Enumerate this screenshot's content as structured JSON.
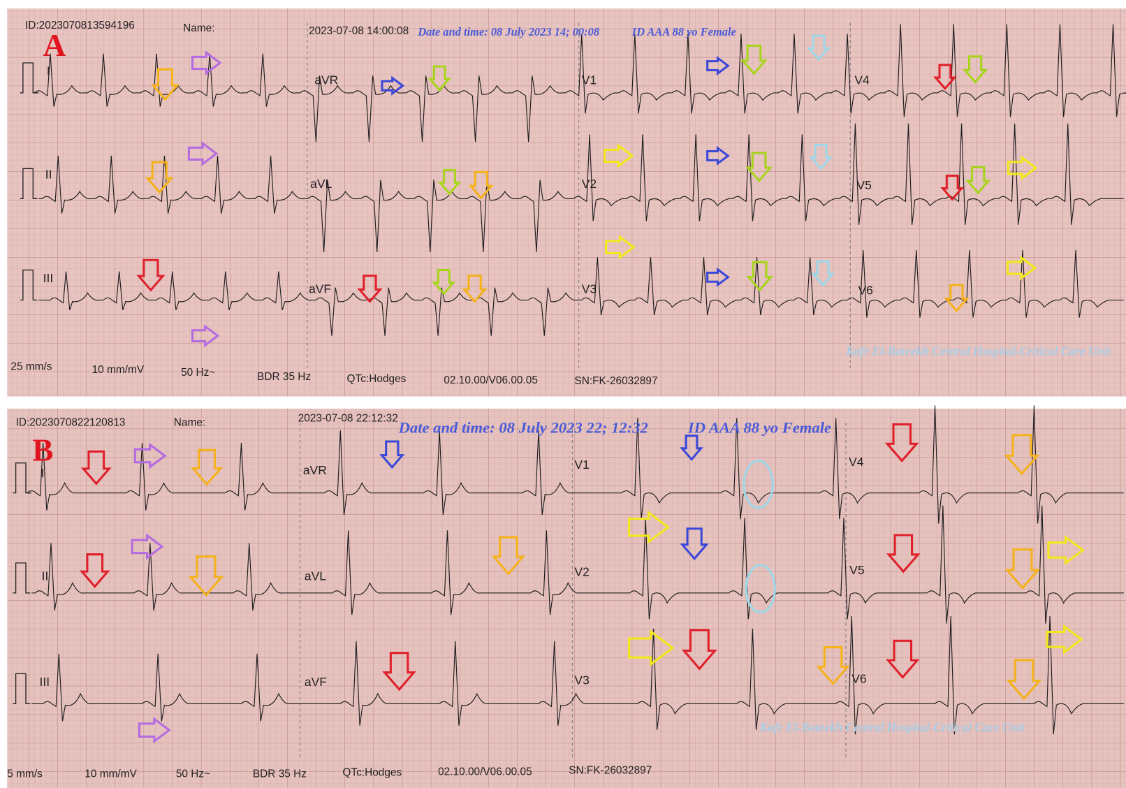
{
  "panels": [
    {
      "label": "A",
      "header": {
        "id": "ID:2023070813594196",
        "name": "Name:",
        "timestamp": "2023-07-08 14:00:08",
        "annotation_date": "Date and time: 08 July 2023 14; 00:08",
        "annotation_patient": "ID AAA 88 yo Female"
      },
      "leads": [
        "I",
        "II",
        "III",
        "aVR",
        "aVL",
        "aVF",
        "V1",
        "V2",
        "V3",
        "V4",
        "V5",
        "V6"
      ],
      "footer": [
        "25 mm/s",
        "10 mm/mV",
        "50 Hz~",
        "BDR 35 Hz",
        "QTc:Hodges",
        "02.10.00/V06.00.05",
        "SN:FK-26032897"
      ],
      "watermark": "Kafr El-Bateekh Central Hospital-Critical Care Unit"
    },
    {
      "label": "B",
      "header": {
        "id": "ID:2023070822120813",
        "name": "Name:",
        "timestamp": "2023-07-08 22:12:32",
        "annotation_date": "Date and time: 08 July 2023 22; 12:32",
        "annotation_patient": "ID AAA 88 yo Female"
      },
      "leads": [
        "I",
        "II",
        "III",
        "aVR",
        "aVL",
        "aVF",
        "V1",
        "V2",
        "V3",
        "V4",
        "V5",
        "V6"
      ],
      "footer": [
        "5 mm/s",
        "10 mm/mV",
        "50 Hz~",
        "BDR 35 Hz",
        "QTc:Hodges",
        "02.10.00/V06.00.05",
        "SN:FK-26032897"
      ],
      "watermark": "Kafr El-Bateekh Central Hospital-Critical Care Unit"
    }
  ]
}
